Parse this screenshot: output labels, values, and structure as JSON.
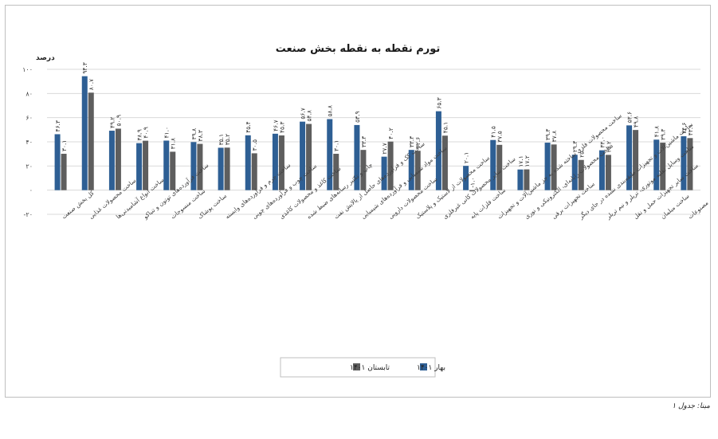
{
  "chart_data": {
    "type": "bar",
    "title": "تورم نقطه به نقطه بخش صنعت",
    "ylabel": "درصد",
    "ylim": [
      -20,
      100
    ],
    "yticks": [
      -20,
      0,
      20,
      40,
      60,
      80,
      100
    ],
    "ytick_labels": [
      "-۲۰",
      "۰",
      "۲۰",
      "۴۰",
      "۶۰",
      "۸۰",
      "۱۰۰"
    ],
    "legend_position": "bottom",
    "categories": [
      "کل بخش صنعت",
      "ساخت محصولات غذایی",
      "ساخت انواع آشامیدنی‌ها",
      "ساخت فرآورده‌های توتون و تنباکو",
      "ساخت منسوجات",
      "ساخت پوشاک",
      "ساخت چرم و فرآورده‌های وابسته",
      "ساخت چوب و فرآورده‌های چوبی",
      "ساخت کاغذ و محصولات کاغذی",
      "چاپ و تکثیر رسانه‌های ضبط شده",
      "ساخت کک و فرآورده‌های حاصل از پالایش نفت",
      "ساخت مواد شیمیایی و فرآورده‌های شیمیایی",
      "ساخت محصولات دارویی",
      "ساخت محصولات از لاستیک و پلاستیک",
      "ساخت سایر محصولات کانی غیرفلزی",
      "ساخت فلزات پایه",
      "ساخت محصولات فلزی ساخته شده به جز ماشین‌آلات و تجهیزات",
      "ساخت محصولات رایانه‌ای، الکترونیکی و نوری",
      "ساخت تجهیزات برقی",
      "ساخت ماشین‌آلات و تجهیزات طبقه‌بندی نشده در جای دیگر",
      "ساخت وسایل نقلیه موتوری، تریلر و نیم تریلر",
      "ساخت سایر تجهیزات حمل و نقل",
      "ساخت مبلمان",
      "ساخت سایر مصنوعات"
    ],
    "series": [
      {
        "name": "بهار ۱۴۰۱",
        "color": "#2e5f94",
        "values": [
          46.3,
          94.3,
          49.2,
          38.9,
          41.0,
          39.8,
          35.1,
          45.4,
          46.7,
          56.7,
          58.8,
          53.9,
          27.7,
          33.3,
          65.3,
          20.1,
          41.5,
          17.1,
          39.3,
          29.3,
          33.0,
          53.6,
          41.8,
          44.6
        ],
        "labels": [
          "۴۶.۳",
          "۹۴.۳",
          "۴۹.۲",
          "۳۸.۹",
          "۴۱.۰",
          "۳۹.۸",
          "۳۵.۱",
          "۴۵.۴",
          "۴۶.۷",
          "۵۶.۷",
          "۵۸.۸",
          "۵۳.۹",
          "۲۷.۷",
          "۳۳.۳",
          "۶۵.۳",
          "۲۰.۱",
          "۴۱.۵",
          "۱۷.۱",
          "۳۹.۳",
          "۲۹.۳",
          "۳۳.۰",
          "۵۳.۶",
          "۴۱.۸",
          "۴۴.۶"
        ]
      },
      {
        "name": "تابستان ۱۴۰۱",
        "color": "#5e5e5e",
        "values": [
          30.1,
          80.7,
          50.9,
          40.9,
          31.8,
          38.3,
          35.2,
          30.5,
          45.3,
          54.8,
          30.1,
          33.3,
          40.2,
          32.6,
          45.1,
          -1.0,
          37.5,
          17.2,
          37.8,
          25.0,
          29.2,
          49.8,
          39.3,
          43.1
        ],
        "labels": [
          "۳۰.۱",
          "۸۰.۷",
          "۵۰.۹",
          "۴۰.۹",
          "۳۱.۸",
          "۳۸.۳",
          "۳۵.۲",
          "۳۰.۵",
          "۴۵.۳",
          "۵۴.۸",
          "۳۰.۱",
          "۳۳.۳",
          "۴۰.۲",
          "۳۲.۶",
          "۴۵.۱",
          "-۱.۰",
          "۳۷.۵",
          "۱۷.۲",
          "۳۷.۸",
          "۲۵.۰",
          "۲۹.۲",
          "۴۹.۸",
          "۳۹.۳",
          "۴۳.۱"
        ]
      }
    ],
    "gridlines": true
  },
  "source": "مبنا: جدول ۱"
}
